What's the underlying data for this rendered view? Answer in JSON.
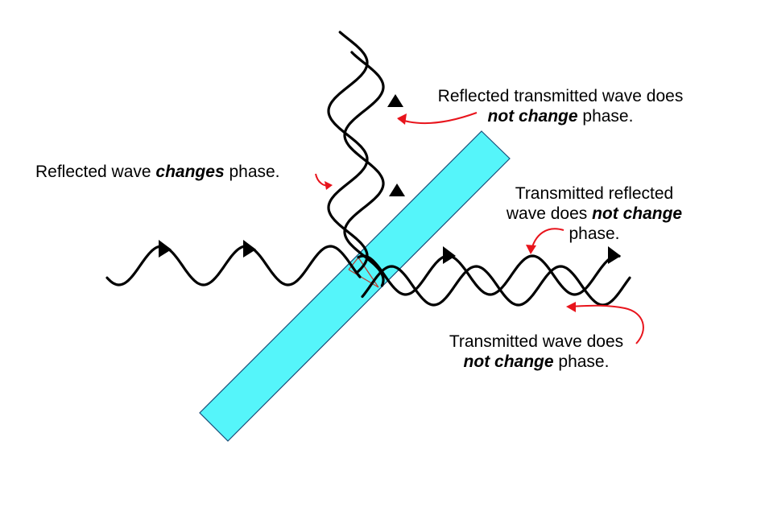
{
  "labels": {
    "reflected": {
      "before": "Reflected wave ",
      "emph": "changes",
      "after": " phase."
    },
    "reflected_transmitted": {
      "line1": "Reflected transmitted wave does",
      "emph": "not change",
      "after": " phase."
    },
    "transmitted_reflected": {
      "line1": "Transmitted reflected",
      "line2_before": "wave does ",
      "emph": "not change",
      "line3": "phase."
    },
    "transmitted": {
      "line1": "Transmitted wave does",
      "emph": "not change",
      "after": " phase."
    }
  },
  "colors": {
    "wave": "#000000",
    "slab_fill": "#55f5fa",
    "slab_stroke": "#1a4f7a",
    "pointer": "#e8141c",
    "internal_ray": "#c0392b"
  },
  "icons": {
    "arrowhead": "triangle-arrowhead-icon"
  }
}
